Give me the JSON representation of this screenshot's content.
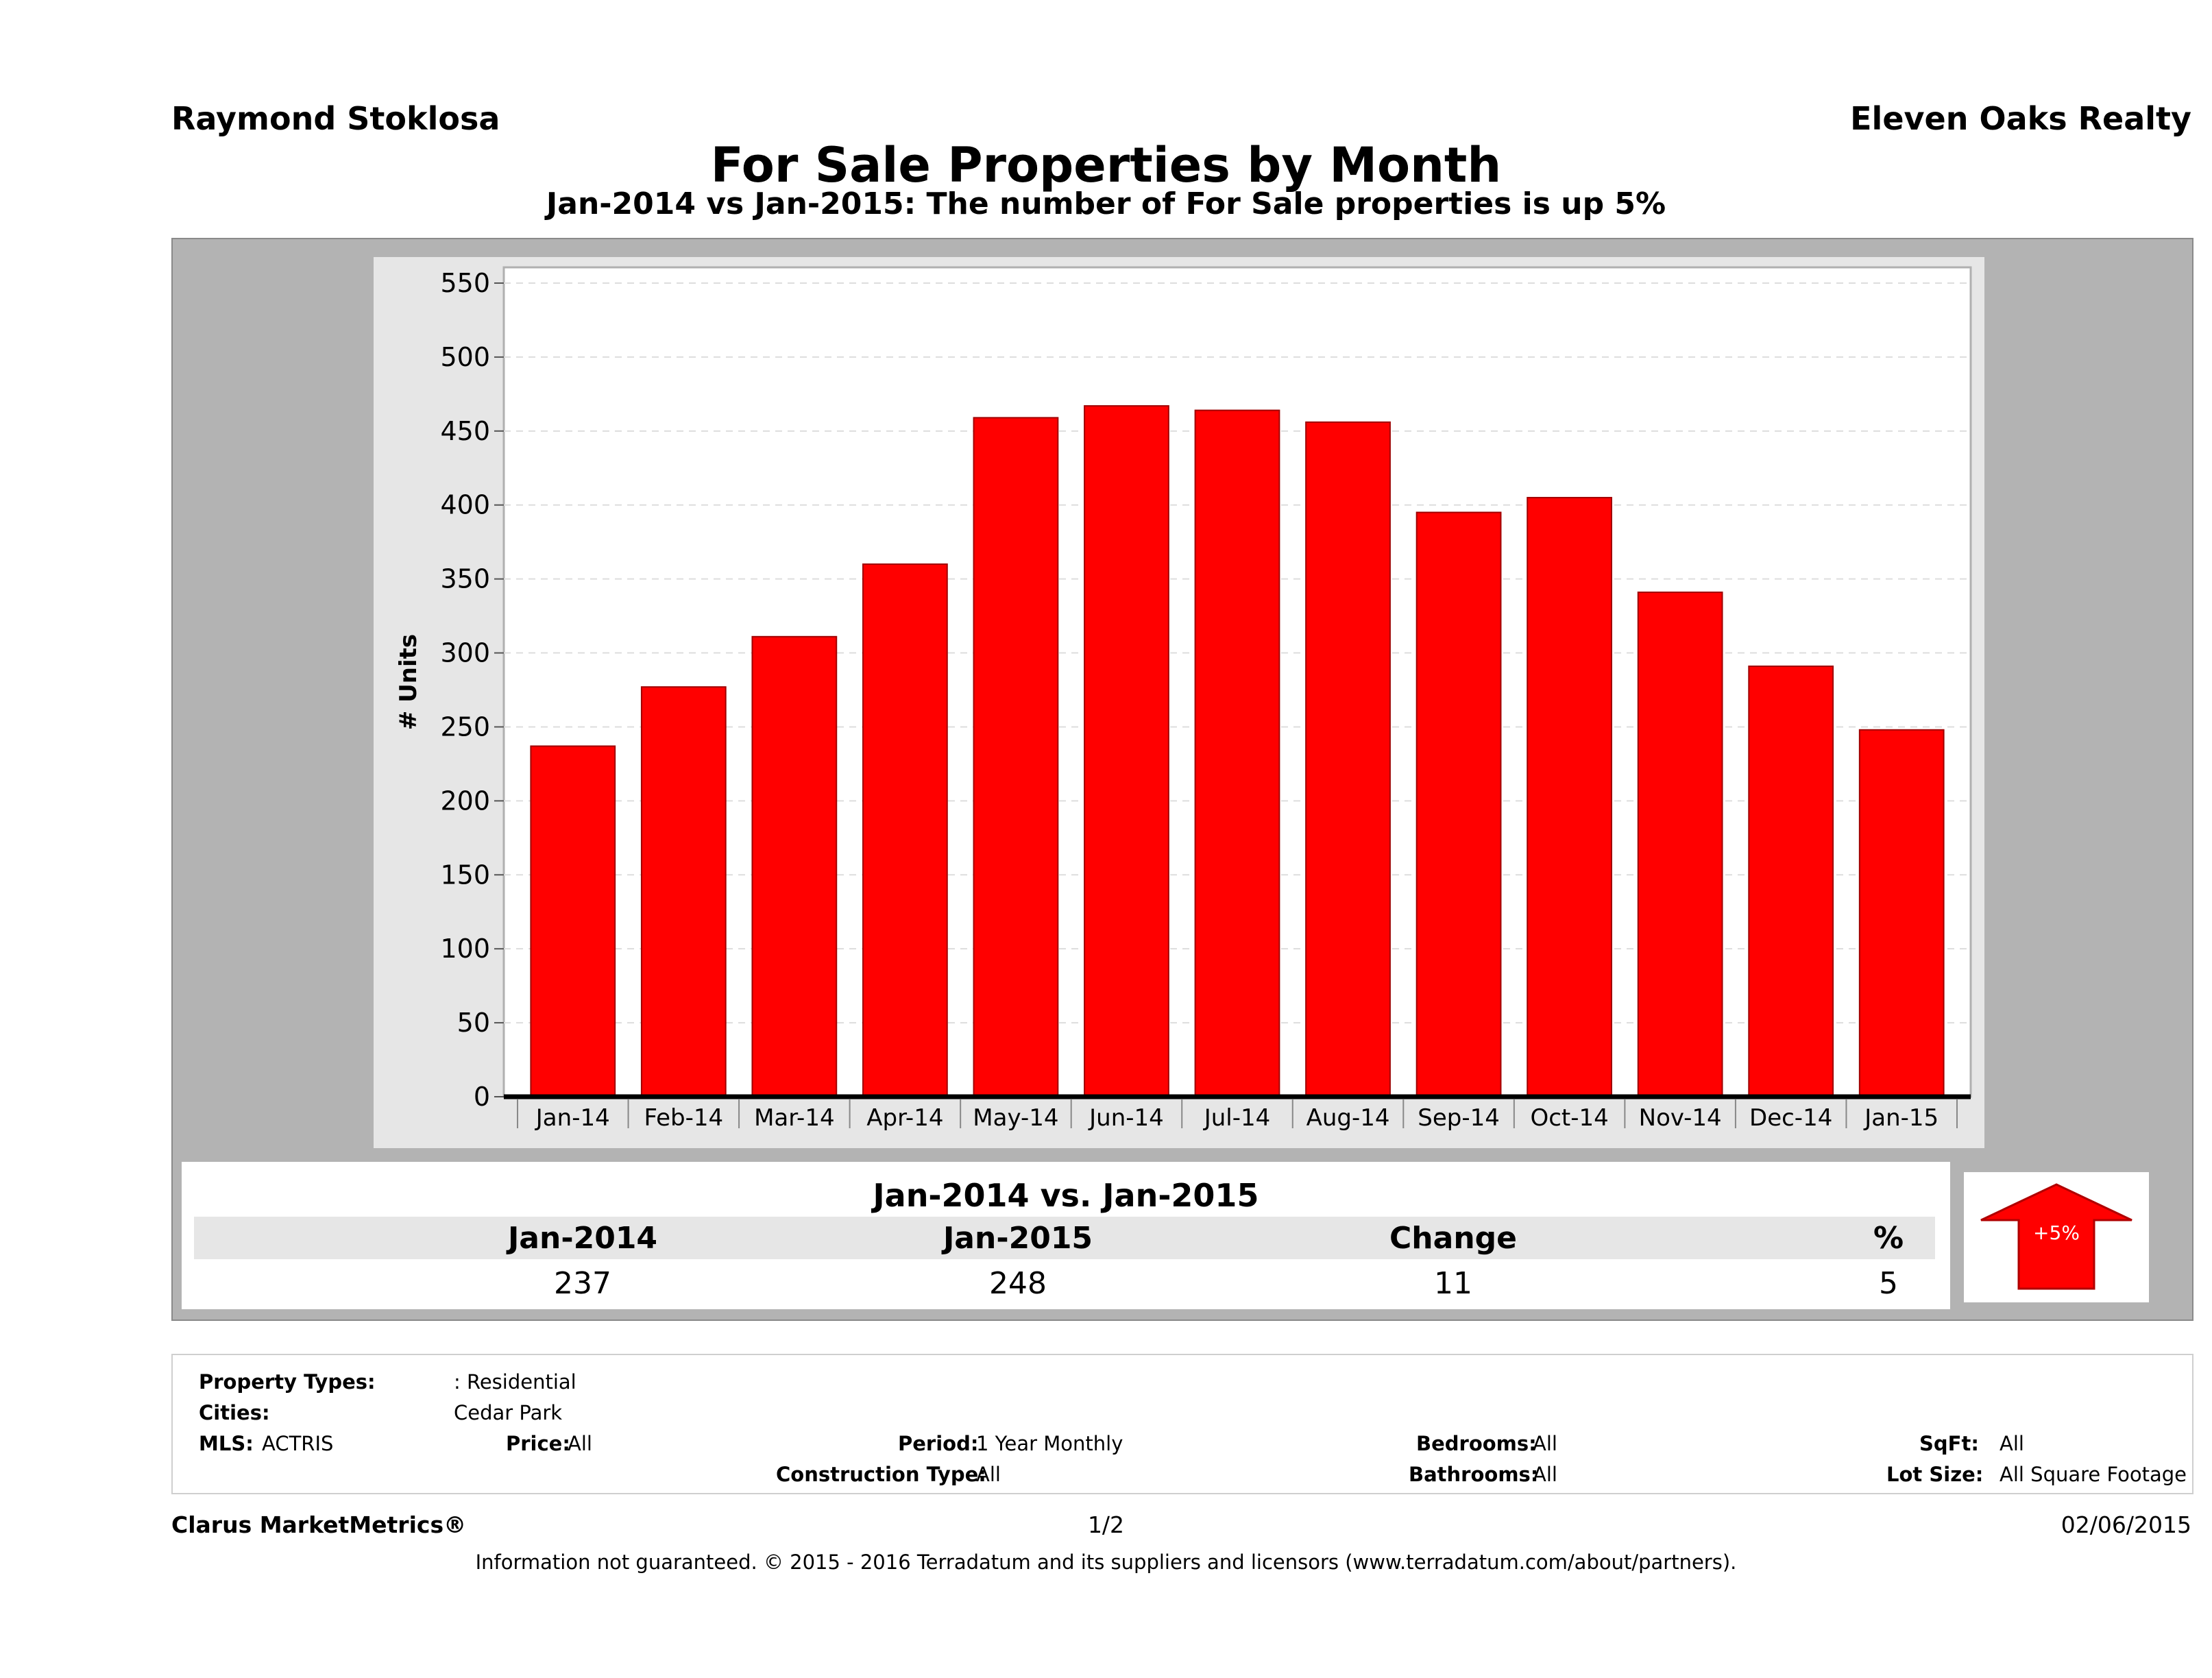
{
  "header": {
    "agent_name": "Raymond Stoklosa",
    "brokerage": "Eleven Oaks Realty",
    "title": "For Sale Properties by Month",
    "subtitle": "Jan-2014 vs Jan-2015: The number of For Sale  properties is up 5%"
  },
  "chart_data": {
    "type": "bar",
    "categories": [
      "Jan-14",
      "Feb-14",
      "Mar-14",
      "Apr-14",
      "May-14",
      "Jun-14",
      "Jul-14",
      "Aug-14",
      "Sep-14",
      "Oct-14",
      "Nov-14",
      "Dec-14",
      "Jan-15"
    ],
    "values": [
      237,
      277,
      311,
      360,
      459,
      467,
      464,
      456,
      395,
      405,
      341,
      291,
      248
    ],
    "ylabel": "# Units",
    "xlabel": "",
    "ylim": [
      0,
      550
    ],
    "yticks": [
      0,
      50,
      100,
      150,
      200,
      250,
      300,
      350,
      400,
      450,
      500,
      550
    ],
    "grid": true,
    "bar_color": "#ff0000"
  },
  "summary": {
    "heading": "Jan-2014 vs. Jan-2015",
    "labels": [
      "Jan-2014",
      "Jan-2015",
      "Change",
      "%"
    ],
    "values": [
      "237",
      "248",
      "11",
      "5"
    ],
    "badge": "+5%",
    "badge_color": "#ff0000"
  },
  "criteria": {
    "property_types_label": "Property Types:",
    "property_types_value": ": Residential",
    "cities_label": "Cities:",
    "cities_value": "Cedar Park",
    "mls_label": "MLS:",
    "mls_value": "ACTRIS",
    "price_label": "Price:",
    "price_value": "All",
    "period_label": "Period:",
    "period_value": "1 Year Monthly",
    "construction_label": "Construction Type:",
    "construction_value": "All",
    "bedrooms_label": "Bedrooms:",
    "bedrooms_value": "All",
    "bathrooms_label": "Bathrooms:",
    "bathrooms_value": "All",
    "sqft_label": "SqFt:",
    "sqft_value": "All",
    "lotsize_label": "Lot Size:",
    "lotsize_value": "All Square Footage"
  },
  "footer": {
    "product": "Clarus MarketMetrics®",
    "page": "1/2",
    "date": "02/06/2015",
    "disclaimer": "Information not guaranteed. © 2015 - 2016 Terradatum and its suppliers and licensors (www.terradatum.com/about/partners)."
  }
}
